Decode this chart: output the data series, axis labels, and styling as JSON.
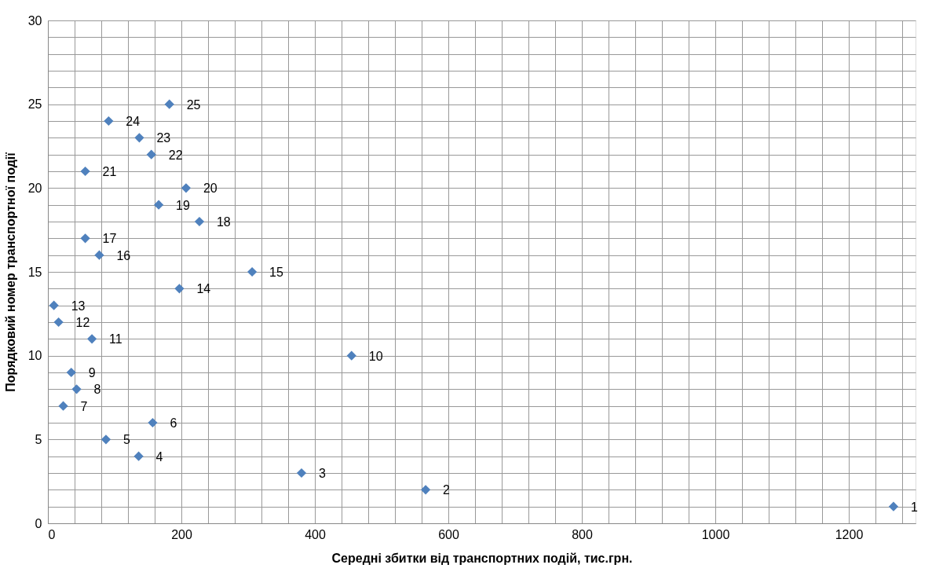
{
  "chart_data": {
    "type": "scatter",
    "xlabel": "Середні збитки від транспортних подій, тис.грн.",
    "ylabel": "Порядковий номер транспортної події",
    "x": [
      1267,
      566,
      380,
      136,
      87,
      157,
      23,
      43,
      35,
      455,
      66,
      16,
      9,
      197,
      306,
      77,
      56,
      227,
      166,
      207,
      56,
      155,
      137,
      91,
      182
    ],
    "series": [
      {
        "color": "#4f81bd",
        "values": [
          1,
          2,
          3,
          4,
          5,
          6,
          7,
          8,
          9,
          10,
          11,
          12,
          13,
          14,
          15,
          16,
          17,
          18,
          19,
          20,
          21,
          22,
          23,
          24,
          25
        ],
        "value_labels": [
          "1",
          "2",
          "3",
          "4",
          "5",
          "6",
          "7",
          "8",
          "9",
          "10",
          "11",
          "12",
          "13",
          "14",
          "15",
          "16",
          "17",
          "18",
          "19",
          "20",
          "21",
          "22",
          "23",
          "24",
          "25"
        ]
      }
    ],
    "marker": "diamond",
    "grid": true,
    "xlim": [
      0,
      1300
    ],
    "xticks": [
      0,
      {
        "value": 40,
        "label": null
      },
      {
        "value": 80,
        "label": null
      },
      {
        "value": 120,
        "label": null
      },
      {
        "value": 160,
        "label": null
      },
      200,
      {
        "value": 240,
        "label": null
      },
      {
        "value": 280,
        "label": null
      },
      {
        "value": 320,
        "label": null
      },
      {
        "value": 360,
        "label": null
      },
      400,
      {
        "value": 440,
        "label": null
      },
      {
        "value": 480,
        "label": null
      },
      {
        "value": 520,
        "label": null
      },
      {
        "value": 560,
        "label": null
      },
      600,
      {
        "value": 640,
        "label": null
      },
      {
        "value": 680,
        "label": null
      },
      {
        "value": 720,
        "label": null
      },
      {
        "value": 760,
        "label": null
      },
      800,
      {
        "value": 840,
        "label": null
      },
      {
        "value": 880,
        "label": null
      },
      {
        "value": 920,
        "label": null
      },
      {
        "value": 960,
        "label": null
      },
      1000,
      {
        "value": 1040,
        "label": null
      },
      {
        "value": 1080,
        "label": null
      },
      {
        "value": 1120,
        "label": null
      },
      {
        "value": 1160,
        "label": null
      },
      1200,
      {
        "value": 1240,
        "label": null
      },
      {
        "value": 1280,
        "label": null
      }
    ],
    "ylim": [
      0,
      30
    ],
    "yticks": [
      0,
      {
        "value": 1,
        "label": null
      },
      {
        "value": 2,
        "label": null
      },
      {
        "value": 3,
        "label": null
      },
      {
        "value": 4,
        "label": null
      },
      5,
      {
        "value": 6,
        "label": null
      },
      {
        "value": 7,
        "label": null
      },
      {
        "value": 8,
        "label": null
      },
      {
        "value": 9,
        "label": null
      },
      10,
      {
        "value": 11,
        "label": null
      },
      {
        "value": 12,
        "label": null
      },
      {
        "value": 13,
        "label": null
      },
      {
        "value": 14,
        "label": null
      },
      15,
      {
        "value": 16,
        "label": null
      },
      {
        "value": 17,
        "label": null
      },
      {
        "value": 18,
        "label": null
      },
      {
        "value": 19,
        "label": null
      },
      20,
      {
        "value": 21,
        "label": null
      },
      {
        "value": 22,
        "label": null
      },
      {
        "value": 23,
        "label": null
      },
      {
        "value": 24,
        "label": null
      },
      25,
      {
        "value": 26,
        "label": null
      },
      {
        "value": 27,
        "label": null
      },
      {
        "value": 28,
        "label": null
      },
      {
        "value": 29,
        "label": null
      },
      30
    ]
  }
}
